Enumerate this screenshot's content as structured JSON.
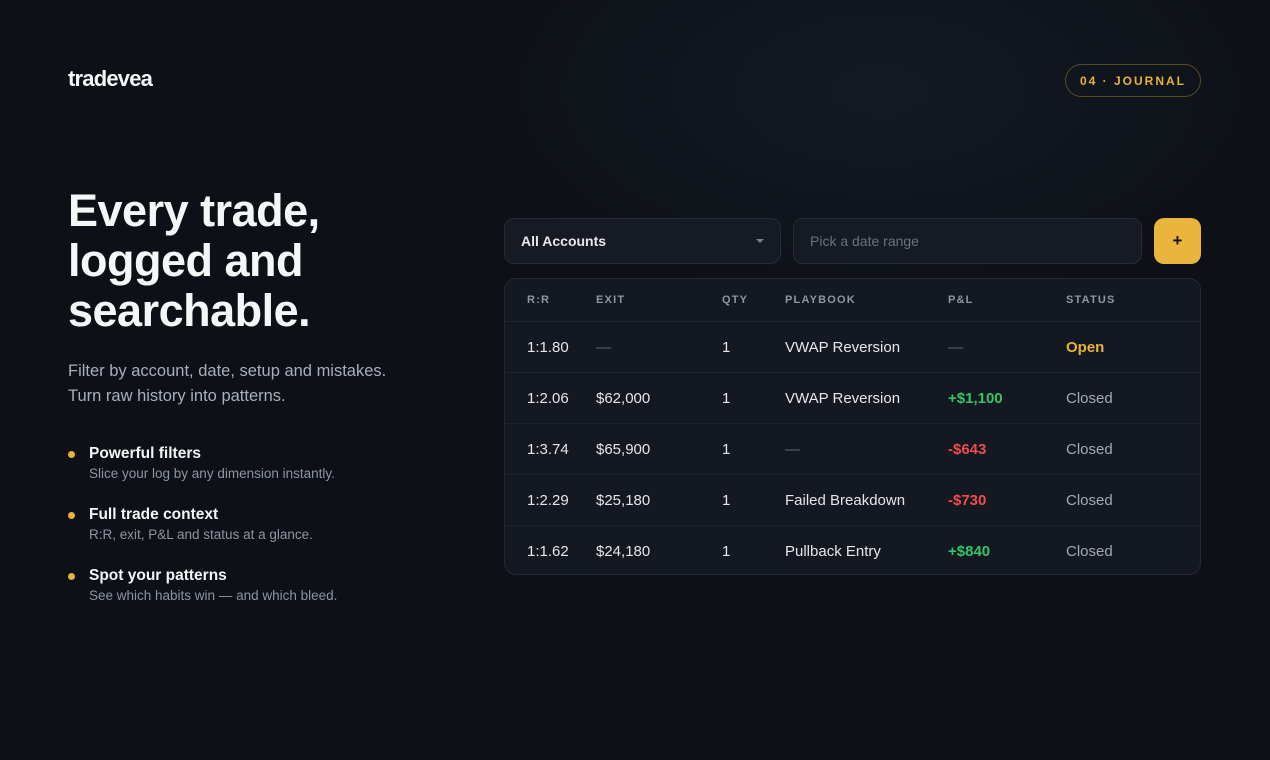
{
  "brand": {
    "logo_text": "tradevea"
  },
  "section_badge": "04 · JOURNAL",
  "hero": {
    "headline_lines": [
      "Every trade,",
      "logged and",
      "searchable."
    ],
    "subtext_lines": [
      "Filter by account, date, setup and mistakes.",
      "Turn raw history into patterns."
    ]
  },
  "features": [
    {
      "title": "Powerful filters",
      "description": "Slice your log by any dimension instantly."
    },
    {
      "title": "Full trade context",
      "description": "R:R, exit, P&L and status at a glance."
    },
    {
      "title": "Spot your patterns",
      "description": "See which habits win — and which bleed."
    }
  ],
  "filters": {
    "account_select": {
      "selected": "All Accounts"
    },
    "date_range": {
      "placeholder": "Pick a date range",
      "value": ""
    },
    "add_button_label": "+"
  },
  "table": {
    "columns": [
      "R:R",
      "EXIT",
      "QTY",
      "PLAYBOOK",
      "P&L",
      "STATUS"
    ],
    "rows": [
      {
        "rr": "1:1.80",
        "exit": "—",
        "qty": "1",
        "playbook": "VWAP Reversion",
        "pnl": "—",
        "status": "Open"
      },
      {
        "rr": "1:2.06",
        "exit": "$62,000",
        "qty": "1",
        "playbook": "VWAP Reversion",
        "pnl": "+$1,100",
        "status": "Closed"
      },
      {
        "rr": "1:3.74",
        "exit": "$65,900",
        "qty": "1",
        "playbook": "—",
        "pnl": "-$643",
        "status": "Closed"
      },
      {
        "rr": "1:2.29",
        "exit": "$25,180",
        "qty": "1",
        "playbook": "Failed Breakdown",
        "pnl": "-$730",
        "status": "Closed"
      },
      {
        "rr": "1:1.62",
        "exit": "$24,180",
        "qty": "1",
        "playbook": "Pullback Entry",
        "pnl": "+$840",
        "status": "Closed"
      }
    ]
  },
  "colors": {
    "accent": "#e8b33b",
    "positive": "#34c56a",
    "negative": "#ee4d4d",
    "background": "#0d1016"
  }
}
